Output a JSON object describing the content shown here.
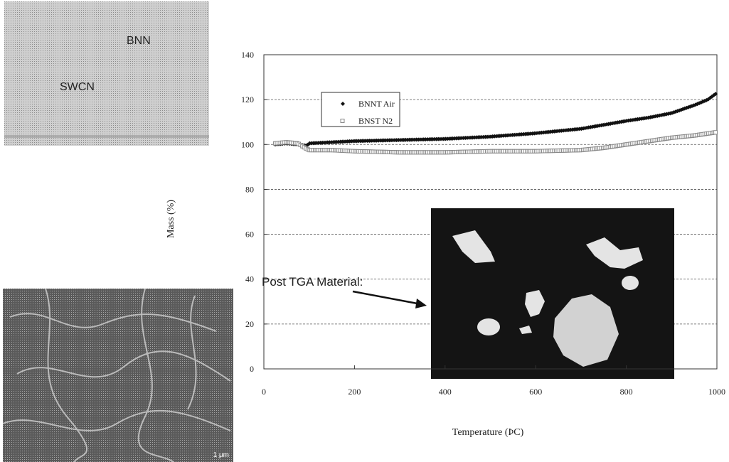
{
  "micrographs": {
    "tem": {
      "labels": [
        "BNN",
        "SWCN"
      ]
    },
    "sem": {
      "scale_text": "1 μm"
    }
  },
  "annotation": {
    "text": "Post TGA Material:"
  },
  "chart_data": {
    "type": "line",
    "title": "",
    "xlabel": "Temperature (ÞC)",
    "ylabel": "Mass (%)",
    "xlim": [
      0,
      1000
    ],
    "ylim": [
      0,
      140
    ],
    "xticks": [
      0,
      200,
      400,
      600,
      800,
      1000
    ],
    "yticks": [
      0,
      20,
      40,
      60,
      80,
      100,
      120,
      140
    ],
    "grid": "horizontal dashed",
    "legend_position": "top-left",
    "series": [
      {
        "name": "BNNT Air",
        "marker": "filled-diamond",
        "color": "#111111",
        "x": [
          25,
          50,
          75,
          95,
          100,
          150,
          200,
          300,
          400,
          500,
          600,
          700,
          800,
          850,
          900,
          950,
          980,
          1000
        ],
        "y": [
          100,
          100.5,
          100,
          99.5,
          100.5,
          101,
          101.5,
          102,
          102.5,
          103.5,
          105,
          107,
          110.5,
          112,
          114,
          117.5,
          120,
          123
        ]
      },
      {
        "name": "BNST N2",
        "marker": "open-square",
        "color": "#888888",
        "x": [
          25,
          50,
          75,
          95,
          100,
          150,
          200,
          300,
          400,
          500,
          600,
          700,
          750,
          800,
          850,
          900,
          950,
          1000
        ],
        "y": [
          100.5,
          101,
          100.5,
          98,
          97.5,
          97.5,
          97,
          96.5,
          96.5,
          97,
          97,
          97.5,
          98.5,
          100,
          101.5,
          103,
          104,
          105.5
        ]
      }
    ]
  }
}
